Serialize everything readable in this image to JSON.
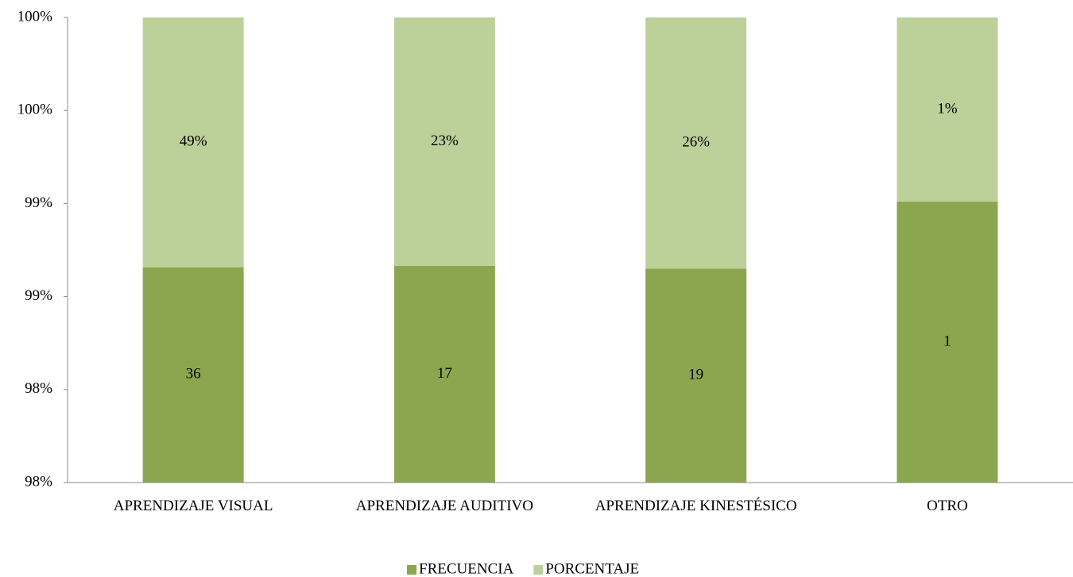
{
  "chart_data": {
    "type": "bar",
    "stacked": "percent",
    "categories": [
      "APRENDIZAJE VISUAL",
      "APRENDIZAJE AUDITIVO",
      "APRENDIZAJE KINESTÉSICO",
      "OTRO"
    ],
    "series": [
      {
        "name": "FRECUENCIA",
        "color": "#8ba64e",
        "values": [
          36,
          17,
          19,
          1
        ]
      },
      {
        "name": "PORCENTAJE",
        "color": "#bcd09a",
        "values": [
          0.49,
          0.23,
          0.26,
          0.01
        ],
        "value_labels": [
          "49%",
          "23%",
          "26%",
          "1%"
        ]
      }
    ],
    "ylim": [
      97.5,
      100
    ],
    "yticks": [
      {
        "value": 97.5,
        "label": "98%"
      },
      {
        "value": 98.0,
        "label": "98%"
      },
      {
        "value": 98.5,
        "label": "99%"
      },
      {
        "value": 99.0,
        "label": "99%"
      },
      {
        "value": 99.5,
        "label": "100%"
      },
      {
        "value": 100.0,
        "label": "100%"
      }
    ],
    "grid": false,
    "legend": "bottom"
  }
}
